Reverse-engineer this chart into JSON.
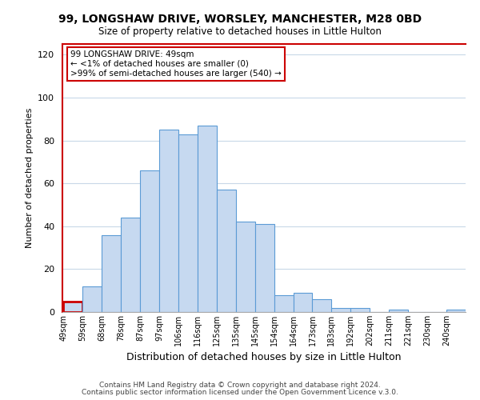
{
  "title1": "99, LONGSHAW DRIVE, WORSLEY, MANCHESTER, M28 0BD",
  "title2": "Size of property relative to detached houses in Little Hulton",
  "xlabel": "Distribution of detached houses by size in Little Hulton",
  "ylabel": "Number of detached properties",
  "bar_labels": [
    "49sqm",
    "59sqm",
    "68sqm",
    "78sqm",
    "87sqm",
    "97sqm",
    "106sqm",
    "116sqm",
    "125sqm",
    "135sqm",
    "145sqm",
    "154sqm",
    "164sqm",
    "173sqm",
    "183sqm",
    "192sqm",
    "202sqm",
    "211sqm",
    "221sqm",
    "230sqm",
    "240sqm"
  ],
  "bar_values": [
    5,
    12,
    36,
    44,
    66,
    85,
    83,
    87,
    57,
    42,
    41,
    8,
    9,
    6,
    2,
    2,
    0,
    1,
    0,
    0,
    1
  ],
  "bar_color": "#c6d9f0",
  "bar_edge_color": "#5b9bd5",
  "highlight_bar_index": 0,
  "highlight_edge_color": "#CC0000",
  "annotation_line1": "99 LONGSHAW DRIVE: 49sqm",
  "annotation_line2": "← <1% of detached houses are smaller (0)",
  "annotation_line3": ">99% of semi-detached houses are larger (540) →",
  "ylim": [
    0,
    125
  ],
  "yticks": [
    0,
    20,
    40,
    60,
    80,
    100,
    120
  ],
  "footer1": "Contains HM Land Registry data © Crown copyright and database right 2024.",
  "footer2": "Contains public sector information licensed under the Open Government Licence v.3.0.",
  "background_color": "#ffffff",
  "grid_color": "#c8d8e8",
  "left_spine_color": "#CC0000",
  "top_spine_color": "#CC0000"
}
